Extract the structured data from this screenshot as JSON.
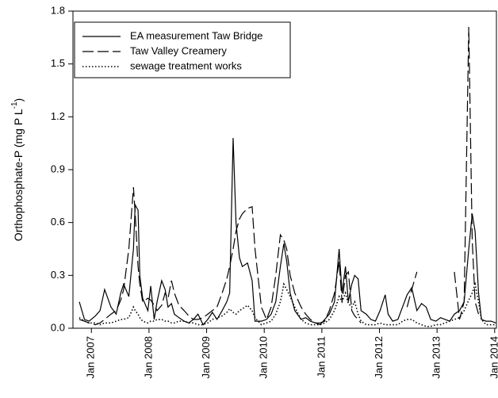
{
  "chart_data": {
    "type": "line",
    "ylabel": {
      "text": "Orthophosphate-P (mg P L",
      "superscript": "-1",
      "end": ")"
    },
    "xlim": [
      2006.68,
      2014.03
    ],
    "xticks": [
      {
        "value": 2007,
        "label": "Jan 2007"
      },
      {
        "value": 2008,
        "label": "Jan 2008"
      },
      {
        "value": 2009,
        "label": "Jan 2009"
      },
      {
        "value": 2010,
        "label": "Jan 2010"
      },
      {
        "value": 2011,
        "label": "Jan 2011"
      },
      {
        "value": 2012,
        "label": "Jan 2012"
      },
      {
        "value": 2013,
        "label": "Jan 2013"
      },
      {
        "value": 2014,
        "label": "Jan 2014"
      }
    ],
    "ylim": [
      0,
      1.8
    ],
    "yticks": [
      {
        "value": 0,
        "label": "0.0"
      },
      0.3,
      0.6,
      0.9,
      1.2,
      1.5,
      1.8
    ],
    "legend": "upper left",
    "x": [
      2006.79,
      2006.88,
      2006.96,
      2007.07,
      2007.15,
      2007.23,
      2007.34,
      2007.43,
      2007.51,
      2007.56,
      2007.65,
      2007.73,
      2007.76,
      2007.81,
      2007.84,
      2007.89,
      2007.98,
      2008.03,
      2008.09,
      2008.14,
      2008.22,
      2008.28,
      2008.33,
      2008.39,
      2008.44,
      2008.52,
      2008.61,
      2008.69,
      2008.77,
      2008.85,
      2008.94,
      2009.02,
      2009.1,
      2009.18,
      2009.27,
      2009.35,
      2009.4,
      2009.46,
      2009.51,
      2009.57,
      2009.62,
      2009.71,
      2009.79,
      2009.84,
      2009.95,
      2010.04,
      2010.12,
      2010.2,
      2010.28,
      2010.34,
      2010.39,
      2010.45,
      2010.53,
      2010.64,
      2010.72,
      2010.8,
      2010.89,
      2010.97,
      2011.05,
      2011.13,
      2011.22,
      2011.3,
      2011.35,
      2011.41,
      2011.46,
      2011.52,
      2011.57,
      2011.63,
      2011.68,
      2011.77,
      2011.85,
      2011.93,
      2012.01,
      2012.1,
      2012.15,
      2012.23,
      2012.32,
      2012.4,
      2012.48,
      2012.56,
      2012.65,
      2012.73,
      2012.81,
      2012.89,
      2012.98,
      2013.06,
      2013.14,
      2013.22,
      2013.3,
      2013.39,
      2013.47,
      2013.55,
      2013.61,
      2013.66,
      2013.72,
      2013.77,
      2013.85,
      2013.94,
      2014.02
    ],
    "series": [
      {
        "name": "EA measurement Taw Bridge",
        "color": "#000000",
        "style": "solid",
        "values": [
          0.15,
          0.05,
          0.04,
          0.07,
          0.1,
          0.22,
          0.12,
          0.08,
          0.2,
          0.25,
          0.18,
          0.45,
          0.7,
          0.67,
          0.3,
          0.17,
          0.1,
          0.24,
          0.05,
          0.15,
          0.27,
          0.22,
          0.12,
          0.14,
          0.08,
          0.06,
          0.04,
          0.03,
          0.05,
          0.08,
          0.02,
          0.05,
          0.09,
          0.05,
          0.1,
          0.15,
          0.2,
          1.08,
          0.6,
          0.4,
          0.35,
          0.37,
          0.27,
          0.04,
          0.04,
          0.05,
          0.08,
          0.15,
          0.35,
          0.48,
          0.38,
          0.2,
          0.1,
          0.05,
          0.06,
          0.04,
          0.03,
          0.02,
          0.05,
          0.08,
          0.15,
          0.45,
          0.2,
          0.35,
          0.15,
          0.25,
          0.3,
          0.28,
          0.1,
          0.08,
          0.05,
          0.04,
          0.1,
          0.19,
          0.08,
          0.04,
          0.05,
          0.12,
          0.19,
          0.23,
          0.1,
          0.14,
          0.12,
          0.05,
          0.04,
          0.06,
          0.05,
          0.04,
          0.08,
          0.1,
          0.15,
          0.45,
          0.65,
          0.55,
          0.2,
          0.05,
          0.04,
          0.04,
          0.03
        ]
      },
      {
        "name": "Taw Valley Creamery",
        "color": "#000000",
        "style": "dashed",
        "values": [
          0.05,
          0.04,
          0.03,
          0.02,
          0.03,
          0.05,
          0.08,
          0.1,
          0.16,
          0.22,
          0.45,
          0.8,
          0.65,
          0.35,
          0.25,
          0.15,
          0.17,
          0.16,
          0.13,
          0.1,
          0.13,
          0.2,
          0.17,
          0.27,
          0.2,
          0.13,
          0.1,
          0.07,
          0.05,
          0.05,
          0.06,
          0.08,
          0.1,
          0.12,
          0.2,
          0.28,
          0.35,
          0.45,
          0.55,
          0.62,
          0.65,
          0.68,
          0.69,
          0.45,
          0.12,
          0.05,
          0.12,
          0.3,
          0.53,
          0.5,
          0.45,
          0.3,
          0.2,
          0.12,
          0.08,
          0.05,
          0.03,
          0.03,
          0.04,
          0.1,
          0.2,
          0.38,
          0.15,
          0.3,
          0.32,
          0.1,
          0.07,
          0.05,
          0.03,
          null,
          null,
          null,
          null,
          null,
          null,
          null,
          null,
          null,
          0.12,
          0.22,
          0.32,
          null,
          null,
          null,
          null,
          null,
          null,
          null,
          0.32,
          0.05,
          0.15,
          1.71,
          0.5,
          0.15,
          0.08,
          null,
          null,
          null,
          null
        ]
      },
      {
        "name": "sewage treatment works",
        "color": "#000000",
        "style": "dotted",
        "values": [
          0.06,
          0.04,
          0.03,
          0.03,
          0.02,
          0.03,
          0.03,
          0.04,
          0.05,
          0.05,
          0.06,
          0.12,
          0.1,
          0.08,
          0.06,
          0.04,
          0.03,
          0.04,
          0.04,
          0.05,
          0.05,
          0.04,
          0.04,
          0.03,
          0.03,
          0.04,
          0.04,
          0.03,
          0.03,
          0.02,
          0.02,
          0.03,
          0.05,
          0.06,
          0.07,
          0.09,
          0.11,
          0.09,
          0.08,
          0.1,
          0.11,
          0.13,
          0.1,
          0.06,
          0.02,
          0.03,
          0.04,
          0.08,
          0.15,
          0.25,
          0.22,
          0.18,
          0.12,
          0.05,
          0.03,
          0.02,
          0.02,
          0.02,
          0.03,
          0.05,
          0.1,
          0.18,
          0.15,
          0.2,
          0.14,
          0.12,
          0.15,
          0.08,
          0.04,
          0.02,
          0.02,
          0.02,
          0.03,
          0.02,
          0.02,
          0.02,
          0.02,
          0.04,
          0.05,
          0.05,
          0.03,
          0.02,
          0.01,
          0.01,
          0.02,
          0.02,
          0.03,
          0.04,
          0.05,
          0.06,
          0.1,
          0.16,
          0.2,
          0.25,
          0.15,
          0.05,
          0.02,
          0.02,
          0.02
        ]
      }
    ]
  }
}
